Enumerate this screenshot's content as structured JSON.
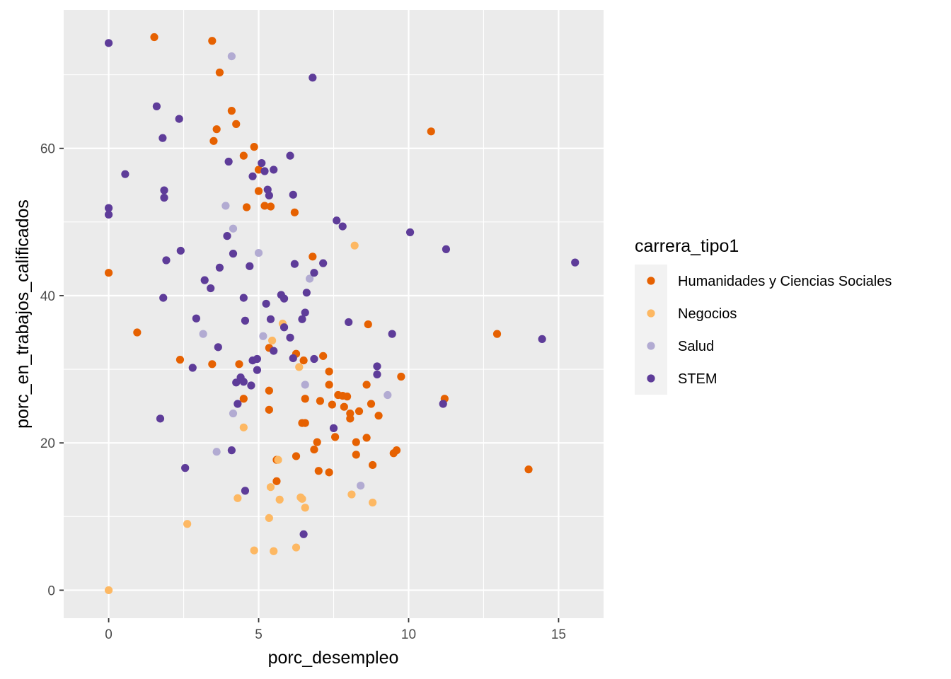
{
  "chart_data": {
    "type": "scatter",
    "title": "",
    "xlabel": "porc_desempleo",
    "ylabel": "porc_en_trabajos_calificados",
    "xlim": [
      -1.5,
      16.5
    ],
    "ylim": [
      -3.8,
      78.8
    ],
    "x_ticks": [
      0,
      5,
      10,
      15
    ],
    "y_ticks": [
      0,
      20,
      40,
      60
    ],
    "x_tick_labels": [
      "0",
      "5",
      "10",
      "15"
    ],
    "y_tick_labels": [
      "0",
      "20",
      "40",
      "60"
    ],
    "grid": true,
    "legend_position": "right",
    "legend_title": "carrera_tipo1",
    "series": [
      {
        "name": "Humanidades y Ciencias Sociales",
        "color": "#e66101",
        "points": [
          [
            1.52,
            75.1
          ],
          [
            3.45,
            74.6
          ],
          [
            3.7,
            70.3
          ],
          [
            4.1,
            65.1
          ],
          [
            4.25,
            63.3
          ],
          [
            3.6,
            62.6
          ],
          [
            3.5,
            61.0
          ],
          [
            4.85,
            60.2
          ],
          [
            4.5,
            59.0
          ],
          [
            5.0,
            57.1
          ],
          [
            5.0,
            54.2
          ],
          [
            5.2,
            52.2
          ],
          [
            5.4,
            52.1
          ],
          [
            4.6,
            52.0
          ],
          [
            6.2,
            51.3
          ],
          [
            0.0,
            43.1
          ],
          [
            6.8,
            45.3
          ],
          [
            0.95,
            35.0
          ],
          [
            2.38,
            31.3
          ],
          [
            3.45,
            30.7
          ],
          [
            4.35,
            30.7
          ],
          [
            5.35,
            32.9
          ],
          [
            6.25,
            32.1
          ],
          [
            6.5,
            31.2
          ],
          [
            7.15,
            31.8
          ],
          [
            7.35,
            29.7
          ],
          [
            7.35,
            27.9
          ],
          [
            5.35,
            27.1
          ],
          [
            4.5,
            26.0
          ],
          [
            6.55,
            26.0
          ],
          [
            7.05,
            25.7
          ],
          [
            7.45,
            25.2
          ],
          [
            7.65,
            26.5
          ],
          [
            7.8,
            26.4
          ],
          [
            7.95,
            26.3
          ],
          [
            7.85,
            24.9
          ],
          [
            8.05,
            24.0
          ],
          [
            8.05,
            23.3
          ],
          [
            8.35,
            24.3
          ],
          [
            8.6,
            27.9
          ],
          [
            8.75,
            25.3
          ],
          [
            8.65,
            36.1
          ],
          [
            9.75,
            29.0
          ],
          [
            5.35,
            24.5
          ],
          [
            6.45,
            22.7
          ],
          [
            6.55,
            22.7
          ],
          [
            7.55,
            20.8
          ],
          [
            8.25,
            20.1
          ],
          [
            8.6,
            20.7
          ],
          [
            9.0,
            23.7
          ],
          [
            6.95,
            20.1
          ],
          [
            6.85,
            19.1
          ],
          [
            8.25,
            18.4
          ],
          [
            6.25,
            18.2
          ],
          [
            9.5,
            18.6
          ],
          [
            9.6,
            19.0
          ],
          [
            5.6,
            17.7
          ],
          [
            8.8,
            17.0
          ],
          [
            7.0,
            16.2
          ],
          [
            7.35,
            16.0
          ],
          [
            5.6,
            14.8
          ],
          [
            10.75,
            62.3
          ],
          [
            11.2,
            26.0
          ],
          [
            12.95,
            34.8
          ],
          [
            14.0,
            16.4
          ]
        ]
      },
      {
        "name": "Negocios",
        "color": "#fdb863",
        "points": [
          [
            8.2,
            46.8
          ],
          [
            5.8,
            36.2
          ],
          [
            5.45,
            33.9
          ],
          [
            6.35,
            30.3
          ],
          [
            5.65,
            17.7
          ],
          [
            4.5,
            22.1
          ],
          [
            5.4,
            14.0
          ],
          [
            4.3,
            12.5
          ],
          [
            5.7,
            12.3
          ],
          [
            6.4,
            12.6
          ],
          [
            6.45,
            12.4
          ],
          [
            6.55,
            11.2
          ],
          [
            8.1,
            13.0
          ],
          [
            8.8,
            11.9
          ],
          [
            5.35,
            9.8
          ],
          [
            2.62,
            9.0
          ],
          [
            4.85,
            5.4
          ],
          [
            5.5,
            5.3
          ],
          [
            6.25,
            5.8
          ],
          [
            0.0,
            0.0
          ]
        ]
      },
      {
        "name": "Salud",
        "color": "#b2abd2",
        "points": [
          [
            4.1,
            72.5
          ],
          [
            3.9,
            52.2
          ],
          [
            4.15,
            49.1
          ],
          [
            5.0,
            45.8
          ],
          [
            6.7,
            42.3
          ],
          [
            3.15,
            34.8
          ],
          [
            5.15,
            34.5
          ],
          [
            6.55,
            27.9
          ],
          [
            9.3,
            26.5
          ],
          [
            4.15,
            24.0
          ],
          [
            3.6,
            18.8
          ],
          [
            8.4,
            14.2
          ]
        ]
      },
      {
        "name": "STEM",
        "color": "#5e3c99",
        "points": [
          [
            0.0,
            74.3
          ],
          [
            1.6,
            65.7
          ],
          [
            2.35,
            64.0
          ],
          [
            1.8,
            61.4
          ],
          [
            6.8,
            69.6
          ],
          [
            0.55,
            56.5
          ],
          [
            4.0,
            58.2
          ],
          [
            4.8,
            56.2
          ],
          [
            5.1,
            58.0
          ],
          [
            5.2,
            56.9
          ],
          [
            5.5,
            57.1
          ],
          [
            6.05,
            59.0
          ],
          [
            1.85,
            54.3
          ],
          [
            1.85,
            53.3
          ],
          [
            5.3,
            54.4
          ],
          [
            5.35,
            53.6
          ],
          [
            6.15,
            53.7
          ],
          [
            0.0,
            51.9
          ],
          [
            0.0,
            51.0
          ],
          [
            7.6,
            50.2
          ],
          [
            7.8,
            49.4
          ],
          [
            3.95,
            48.1
          ],
          [
            10.05,
            48.6
          ],
          [
            2.4,
            46.1
          ],
          [
            4.15,
            45.7
          ],
          [
            1.92,
            44.8
          ],
          [
            3.7,
            43.8
          ],
          [
            4.7,
            44.0
          ],
          [
            6.2,
            44.3
          ],
          [
            6.85,
            43.1
          ],
          [
            7.15,
            44.4
          ],
          [
            11.25,
            46.3
          ],
          [
            15.55,
            44.5
          ],
          [
            3.2,
            42.1
          ],
          [
            3.4,
            41.0
          ],
          [
            1.82,
            39.7
          ],
          [
            4.5,
            39.7
          ],
          [
            5.75,
            40.1
          ],
          [
            5.85,
            39.6
          ],
          [
            6.6,
            40.4
          ],
          [
            5.25,
            38.9
          ],
          [
            2.92,
            36.9
          ],
          [
            4.55,
            36.6
          ],
          [
            5.4,
            36.8
          ],
          [
            5.85,
            35.7
          ],
          [
            6.45,
            36.8
          ],
          [
            6.55,
            37.7
          ],
          [
            8.0,
            36.4
          ],
          [
            9.45,
            34.8
          ],
          [
            3.65,
            33.0
          ],
          [
            6.05,
            34.3
          ],
          [
            5.5,
            32.5
          ],
          [
            4.8,
            31.2
          ],
          [
            4.95,
            31.4
          ],
          [
            6.15,
            31.5
          ],
          [
            6.85,
            31.4
          ],
          [
            2.8,
            30.2
          ],
          [
            4.95,
            29.9
          ],
          [
            4.4,
            28.9
          ],
          [
            4.5,
            28.3
          ],
          [
            4.25,
            28.2
          ],
          [
            4.75,
            27.8
          ],
          [
            8.95,
            30.4
          ],
          [
            8.95,
            29.3
          ],
          [
            4.3,
            25.3
          ],
          [
            11.15,
            25.3
          ],
          [
            14.45,
            34.1
          ],
          [
            1.72,
            23.3
          ],
          [
            7.5,
            22.0
          ],
          [
            4.1,
            19.0
          ],
          [
            2.55,
            16.6
          ],
          [
            4.55,
            13.5
          ],
          [
            6.5,
            7.6
          ]
        ]
      }
    ]
  }
}
